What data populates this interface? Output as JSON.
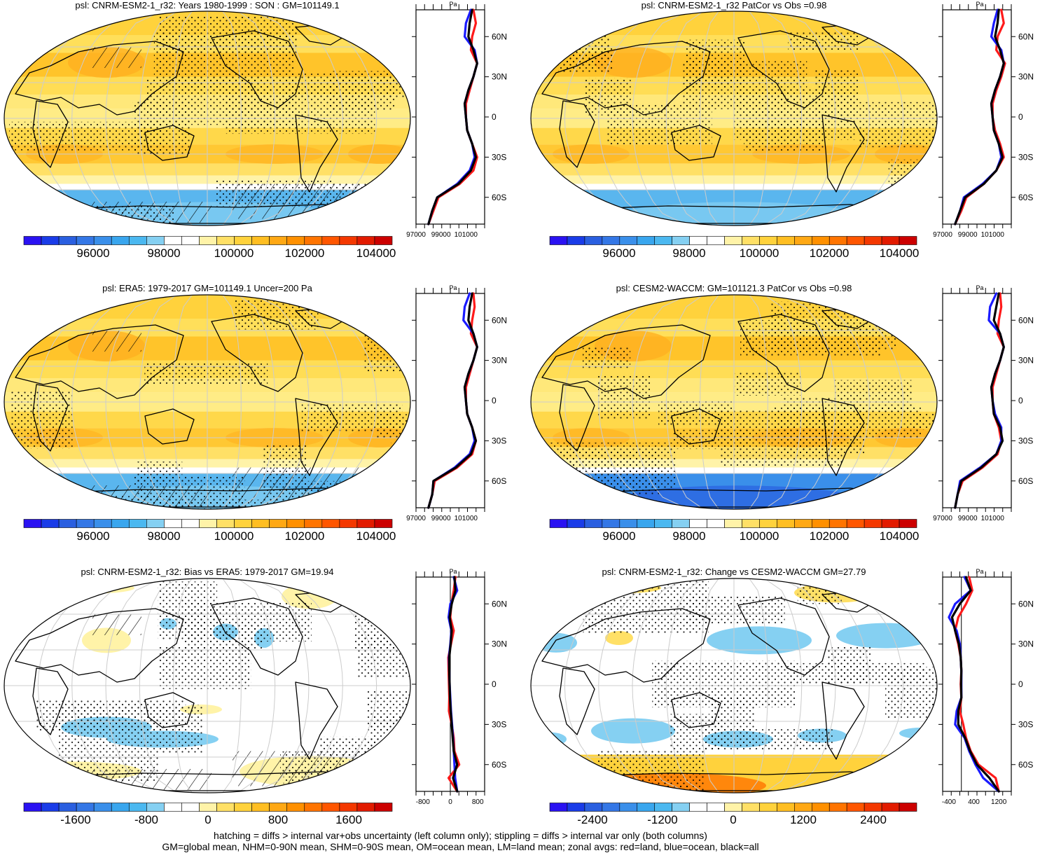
{
  "panels": [
    {
      "title": "psl: CNRM-ESM2-1_r32: Years 1980-1999 : SON : GM=101149.1"
    },
    {
      "title": "psl: CNRM-ESM2-1_r32 PatCor vs Obs =0.98"
    },
    {
      "title": "psl: ERA5: 1979-2017 GM=101149.1 Uncer=200 Pa"
    },
    {
      "title": "psl: CESM2-WACCM: GM=101121.3 PatCor vs Obs =0.98"
    },
    {
      "title": "psl: CNRM-ESM2-1_r32: Bias vs ERA5: 1979-2017  GM=19.94"
    },
    {
      "title": "psl: CNRM-ESM2-1_r32: Change vs CESM2-WACCM GM=27.79"
    }
  ],
  "colorbars": {
    "absolute": {
      "labels": [
        "96000",
        "98000",
        "100000",
        "102000",
        "104000"
      ]
    },
    "bias": {
      "labels": [
        "-1600",
        "-800",
        "0",
        "800",
        "1600"
      ]
    },
    "change": {
      "labels": [
        "-2400",
        "-1200",
        "0",
        "1200",
        "2400"
      ]
    }
  },
  "colors": {
    "scale": [
      "#2a12f2",
      "#1a3ce8",
      "#2a5fe0",
      "#3477e6",
      "#3a8fea",
      "#39a6ee",
      "#4bb8f0",
      "#85d0f2",
      "#ffffff",
      "#ffffff",
      "#fff3a8",
      "#ffe066",
      "#ffd23c",
      "#ffbe22",
      "#ffa814",
      "#ff9000",
      "#ff7400",
      "#ff5600",
      "#f43800",
      "#e21b00",
      "#cc0000"
    ],
    "land_line": "#ff1a1a",
    "ocean_line": "#1a1aff",
    "all_line": "#000000"
  },
  "chart_data": [
    {
      "type": "heatmap",
      "title": "psl: CNRM-ESM2-1_r32: Years 1980-1999 : SON : GM=101149.1",
      "projection": "Robinson",
      "colorbar_ticks": [
        96000,
        98000,
        100000,
        102000,
        104000
      ]
    },
    {
      "type": "line",
      "units": "Pa",
      "y_ticks": [
        "60N",
        "30N",
        "0",
        "30S",
        "60S"
      ],
      "x_ticks": [
        "97000",
        "99000",
        "101000"
      ],
      "lat": [
        80,
        70,
        60,
        50,
        40,
        30,
        20,
        10,
        0,
        -10,
        -20,
        -30,
        -40,
        -50,
        -60,
        -70,
        -80
      ],
      "series": [
        {
          "color": "red",
          "values": [
            101600,
            101800,
            101500,
            101400,
            101900,
            101600,
            101300,
            101000,
            101000,
            101100,
            101500,
            101900,
            101600,
            100500,
            98800,
            98400,
            98000
          ]
        },
        {
          "color": "blue",
          "values": [
            101400,
            101000,
            100900,
            101700,
            101900,
            101600,
            101200,
            100900,
            101000,
            101100,
            101500,
            101700,
            101300,
            100300,
            98700,
            98300,
            98000
          ]
        },
        {
          "color": "black",
          "values": [
            101500,
            101300,
            101200,
            101600,
            101900,
            101600,
            101200,
            100900,
            101000,
            101100,
            101500,
            101800,
            101400,
            100400,
            98700,
            98300,
            98000
          ]
        }
      ]
    },
    {
      "type": "heatmap",
      "title": "psl: CNRM-ESM2-1_r32 PatCor vs Obs =0.98",
      "projection": "Robinson",
      "colorbar_ticks": [
        96000,
        98000,
        100000,
        102000,
        104000
      ]
    },
    {
      "type": "line",
      "units": "Pa",
      "y_ticks": [
        "60N",
        "30N",
        "0",
        "30S",
        "60S"
      ],
      "x_ticks": [
        "97000",
        "99000",
        "101000"
      ],
      "lat": [
        80,
        70,
        60,
        50,
        40,
        30,
        20,
        10,
        0,
        -10,
        -20,
        -30,
        -40,
        -50,
        -60,
        -70,
        -80
      ],
      "series": [
        {
          "color": "red",
          "values": [
            101700,
            101900,
            101400,
            101300,
            102000,
            101700,
            101300,
            101000,
            101000,
            101200,
            101600,
            101900,
            101300,
            100300,
            98900,
            98500,
            98000
          ]
        },
        {
          "color": "blue",
          "values": [
            101400,
            101100,
            100900,
            101700,
            101900,
            101600,
            101200,
            100900,
            101000,
            101100,
            101500,
            101700,
            101300,
            100200,
            98700,
            98400,
            98000
          ]
        },
        {
          "color": "black",
          "values": [
            101500,
            101400,
            101200,
            101600,
            101900,
            101600,
            101200,
            100900,
            101000,
            101100,
            101500,
            101800,
            101300,
            100300,
            98800,
            98400,
            98000
          ]
        }
      ]
    },
    {
      "type": "heatmap",
      "title": "psl: ERA5: 1979-2017 GM=101149.1 Uncer=200 Pa",
      "projection": "Robinson",
      "colorbar_ticks": [
        96000,
        98000,
        100000,
        102000,
        104000
      ]
    },
    {
      "type": "line",
      "units": "Pa",
      "y_ticks": [
        "60N",
        "30N",
        "0",
        "30S",
        "60S"
      ],
      "x_ticks": [
        "97000",
        "99000",
        "101000"
      ],
      "lat": [
        80,
        70,
        60,
        50,
        40,
        30,
        20,
        10,
        0,
        -10,
        -20,
        -30,
        -40,
        -50,
        -60,
        -70,
        -80
      ],
      "series": [
        {
          "color": "red",
          "values": [
            101600,
            101700,
            101500,
            101400,
            101900,
            101600,
            101300,
            101000,
            101000,
            101100,
            101500,
            101800,
            101500,
            100300,
            98500,
            98300,
            98000
          ]
        },
        {
          "color": "blue",
          "values": [
            101300,
            100900,
            100800,
            101600,
            101900,
            101600,
            101200,
            100900,
            101000,
            101100,
            101500,
            101700,
            101300,
            100100,
            98400,
            98300,
            98000
          ]
        },
        {
          "color": "black",
          "values": [
            101500,
            101300,
            101200,
            101600,
            101900,
            101600,
            101200,
            100900,
            101000,
            101100,
            101500,
            101800,
            101400,
            100200,
            98400,
            98300,
            98000
          ]
        }
      ]
    },
    {
      "type": "heatmap",
      "title": "psl: CESM2-WACCM: GM=101121.3 PatCor vs Obs =0.98",
      "projection": "Robinson",
      "colorbar_ticks": [
        96000,
        98000,
        100000,
        102000,
        104000
      ]
    },
    {
      "type": "line",
      "units": "Pa",
      "y_ticks": [
        "60N",
        "30N",
        "0",
        "30S",
        "60S"
      ],
      "x_ticks": [
        "97000",
        "99000",
        "101000"
      ],
      "lat": [
        80,
        70,
        60,
        50,
        40,
        30,
        20,
        10,
        0,
        -10,
        -20,
        -30,
        -40,
        -50,
        -60,
        -70,
        -80
      ],
      "series": [
        {
          "color": "red",
          "values": [
            101600,
            101700,
            101500,
            101400,
            101900,
            101600,
            101300,
            101000,
            101000,
            101100,
            101500,
            101700,
            101400,
            100200,
            98600,
            98200,
            98000
          ]
        },
        {
          "color": "blue",
          "values": [
            101300,
            100800,
            100700,
            101600,
            101900,
            101600,
            101200,
            100900,
            101000,
            101200,
            101700,
            101700,
            101300,
            100000,
            98400,
            98200,
            98000
          ]
        },
        {
          "color": "black",
          "values": [
            101500,
            101300,
            101100,
            101600,
            101900,
            101600,
            101200,
            100900,
            101000,
            101100,
            101600,
            101800,
            101300,
            100100,
            98500,
            98200,
            98000
          ]
        }
      ]
    },
    {
      "type": "heatmap",
      "title": "psl: CNRM-ESM2-1_r32: Bias vs ERA5: 1979-2017  GM=19.94",
      "projection": "Robinson",
      "colorbar_ticks": [
        -1600,
        -800,
        0,
        800,
        1600
      ]
    },
    {
      "type": "line",
      "units": "Pa",
      "y_ticks": [
        "60N",
        "30N",
        "0",
        "30S",
        "60S"
      ],
      "x_ticks": [
        "-800",
        "0",
        "800"
      ],
      "lat": [
        80,
        70,
        60,
        50,
        40,
        30,
        20,
        10,
        0,
        -10,
        -20,
        -30,
        -40,
        -50,
        -60,
        -70,
        -80
      ],
      "series": [
        {
          "color": "red",
          "values": [
            150,
            100,
            30,
            0,
            100,
            20,
            -60,
            -50,
            -40,
            -30,
            -40,
            40,
            100,
            120,
            260,
            -50,
            200
          ]
        },
        {
          "color": "blue",
          "values": [
            100,
            200,
            0,
            -50,
            30,
            0,
            -40,
            -30,
            -20,
            0,
            20,
            50,
            80,
            100,
            120,
            140,
            200
          ]
        },
        {
          "color": "black",
          "values": [
            120,
            150,
            40,
            -20,
            40,
            10,
            -30,
            -30,
            -20,
            -10,
            10,
            40,
            70,
            100,
            200,
            80,
            200
          ]
        }
      ]
    },
    {
      "type": "heatmap",
      "title": "psl: CNRM-ESM2-1_r32: Change vs CESM2-WACCM GM=27.79",
      "projection": "Robinson",
      "colorbar_ticks": [
        -2400,
        -1200,
        0,
        1200,
        2400
      ]
    },
    {
      "type": "line",
      "units": "Pa",
      "y_ticks": [
        "60N",
        "30N",
        "0",
        "30S",
        "60S"
      ],
      "x_ticks": [
        "-400",
        "400",
        "1200"
      ],
      "lat": [
        80,
        70,
        60,
        50,
        40,
        30,
        20,
        10,
        0,
        -10,
        -20,
        -30,
        -40,
        -50,
        -60,
        -70,
        -80
      ],
      "series": [
        {
          "color": "red",
          "values": [
            250,
            350,
            150,
            -100,
            -200,
            -100,
            -20,
            0,
            -20,
            0,
            -50,
            60,
            150,
            300,
            550,
            1100,
            1200
          ]
        },
        {
          "color": "blue",
          "values": [
            100,
            300,
            -200,
            -400,
            -150,
            -50,
            -20,
            0,
            0,
            0,
            -150,
            -200,
            100,
            250,
            450,
            700,
            1200
          ]
        },
        {
          "color": "black",
          "values": [
            150,
            300,
            -50,
            -300,
            -200,
            -80,
            -20,
            0,
            -10,
            0,
            -100,
            -100,
            120,
            280,
            500,
            900,
            1200
          ]
        }
      ]
    }
  ],
  "footnote": {
    "line1": "hatching = diffs > internal var+obs uncertainty (left column only); stippling = diffs > internal var only (both columns)",
    "line2": "GM=global mean, NHM=0-90N mean, SHM=0-90S mean, OM=ocean mean, LM=land mean; zonal avgs: red=land, blue=ocean, black=all"
  }
}
